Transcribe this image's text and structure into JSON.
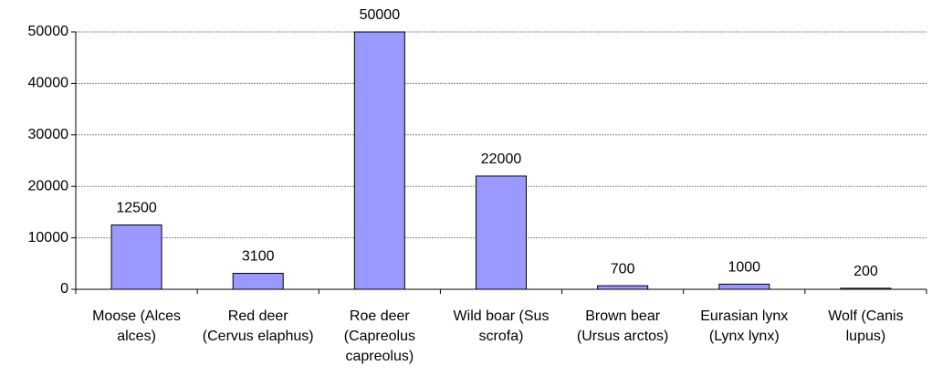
{
  "chart_data": {
    "type": "bar",
    "categories": [
      "Moose (Alces alces)",
      "Red deer (Cervus elaphus)",
      "Roe deer (Capreolus capreolus)",
      "Wild boar (Sus scrofa)",
      "Brown bear (Ursus arctos)",
      "Eurasian lynx (Lynx lynx)",
      "Wolf (Canis lupus)"
    ],
    "values": [
      12500,
      3100,
      50000,
      22000,
      700,
      1000,
      200
    ],
    "color": "#9999ff",
    "ylim": [
      0,
      50000
    ],
    "yticks": [
      0,
      10000,
      20000,
      30000,
      40000,
      50000
    ],
    "grid": true
  }
}
